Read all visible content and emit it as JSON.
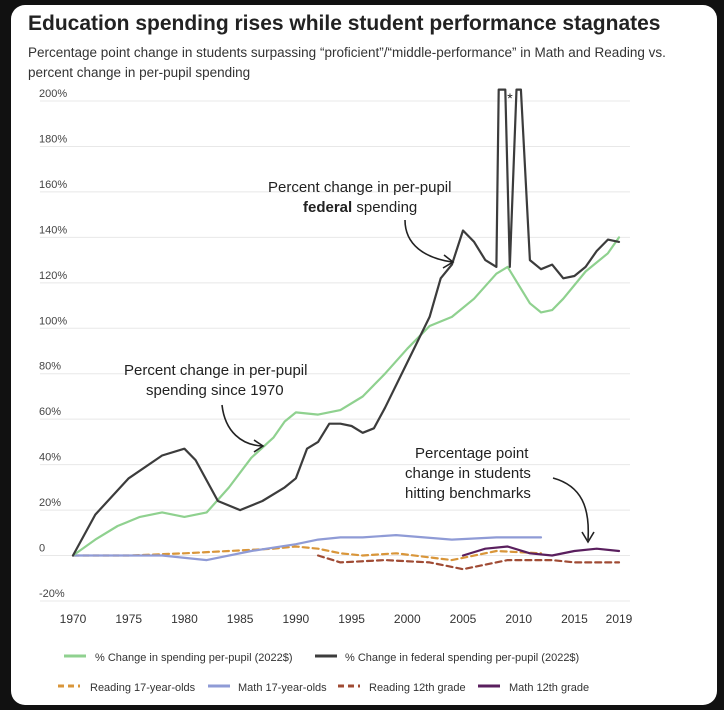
{
  "title": "Education spending rises while student performance stagnates",
  "subtitle": "Percentage point change in students surpassing “proficient”/“middle-performance” in Math and Reading vs. percent change in per-pupil spending",
  "chart_data": {
    "type": "line",
    "title": "Education spending rises while student performance stagnates",
    "xlabel": "",
    "ylabel": "",
    "xlim": [
      1970,
      2019
    ],
    "ylim": [
      -20,
      200
    ],
    "x_ticks": [
      "1970",
      "1975",
      "1980",
      "1985",
      "1990",
      "1995",
      "2000",
      "2005",
      "2010",
      "2015",
      "2019"
    ],
    "x_tick_values": [
      1970,
      1975,
      1980,
      1985,
      1990,
      1995,
      2000,
      2005,
      2010,
      2015,
      2019
    ],
    "y_ticks": [
      "200%",
      "180%",
      "160%",
      "140%",
      "120%",
      "100%",
      "80%",
      "60%",
      "40%",
      "20%",
      "0",
      "-20%"
    ],
    "y_tick_values": [
      200,
      180,
      160,
      140,
      120,
      100,
      80,
      60,
      40,
      20,
      0,
      -20
    ],
    "spike_marker": "*",
    "series": [
      {
        "name": "% Change in spending per-pupil (2022$)",
        "color": "#8fd18f",
        "dash": "solid",
        "x": [
          1970,
          1972,
          1974,
          1976,
          1978,
          1980,
          1982,
          1984,
          1986,
          1988,
          1989,
          1990,
          1992,
          1994,
          1996,
          1998,
          2000,
          2002,
          2004,
          2006,
          2008,
          2009,
          2010,
          2011,
          2012,
          2013,
          2014,
          2016,
          2018,
          2019
        ],
        "values": [
          0,
          7,
          13,
          17,
          19,
          17,
          19,
          30,
          43,
          52,
          59,
          63,
          62,
          64,
          70,
          80,
          91,
          101,
          105,
          113,
          124,
          127,
          119,
          111,
          107,
          108,
          113,
          125,
          133,
          140
        ]
      },
      {
        "name": "% Change in federal spending per-pupil (2022$)",
        "color": "#3c3c3c",
        "dash": "solid",
        "x": [
          1970,
          1972,
          1975,
          1978,
          1980,
          1981,
          1983,
          1985,
          1987,
          1989,
          1990,
          1991,
          1992,
          1993,
          1994,
          1995,
          1996,
          1997,
          1998,
          2000,
          2002,
          2003,
          2004,
          2005,
          2006,
          2007,
          2008,
          2008.2,
          2008.8,
          2009.2,
          2009.8,
          2010.2,
          2011,
          2012,
          2013,
          2014,
          2015,
          2016,
          2017,
          2018,
          2019
        ],
        "values": [
          0,
          18,
          34,
          44,
          47,
          42,
          24,
          20,
          24,
          30,
          34,
          47,
          50,
          58,
          58,
          57,
          54,
          56,
          65,
          85,
          105,
          122,
          128,
          143,
          138,
          130,
          127,
          205,
          205,
          127,
          205,
          205,
          130,
          126,
          128,
          122,
          123,
          127,
          134,
          139,
          138
        ]
      },
      {
        "name": "Reading 17-year-olds",
        "color": "#d9963a",
        "dash": "dashed",
        "x": [
          1970,
          1975,
          1980,
          1984,
          1988,
          1990,
          1992,
          1994,
          1996,
          1999,
          2004,
          2008,
          2012
        ],
        "values": [
          0,
          0,
          1,
          2,
          3,
          4,
          3,
          1,
          0,
          1,
          -2,
          2,
          1
        ]
      },
      {
        "name": "Math 17-year-olds",
        "color": "#8f9bd6",
        "dash": "solid",
        "x": [
          1970,
          1973,
          1978,
          1982,
          1986,
          1990,
          1992,
          1994,
          1996,
          1999,
          2004,
          2008,
          2012
        ],
        "values": [
          0,
          0,
          0,
          -2,
          2,
          5,
          7,
          8,
          8,
          9,
          7,
          8,
          8
        ]
      },
      {
        "name": "Reading 12th grade",
        "color": "#a04b34",
        "dash": "dashed",
        "x": [
          1992,
          1994,
          1998,
          2002,
          2005,
          2009,
          2013,
          2015,
          2019
        ],
        "values": [
          0,
          -3,
          -2,
          -3,
          -6,
          -2,
          -2,
          -3,
          -3
        ]
      },
      {
        "name": "Math 12th grade",
        "color": "#5a1f5e",
        "dash": "solid",
        "x": [
          2005,
          2007,
          2009,
          2011,
          2013,
          2015,
          2017,
          2019
        ],
        "values": [
          0,
          3,
          4,
          1,
          0,
          2,
          3,
          2
        ]
      }
    ],
    "annotations": {
      "federal_line1": "Percent change in per-pupil",
      "federal_bold": "federal",
      "federal_line2_rest": " spending",
      "spending_line1": "Percent change in per-pupil",
      "spending_line2": "spending since 1970",
      "bench_line1": "Percentage point",
      "bench_line2": "change in students",
      "bench_line3": "hitting benchmarks"
    },
    "legend": {
      "placement": "bottom",
      "row1": [
        "% Change in spending per-pupil (2022$)",
        "% Change in federal spending per-pupil (2022$)"
      ],
      "row2": [
        "Reading 17-year-olds",
        "Math 17-year-olds",
        "Reading 12th grade",
        "Math 12th grade"
      ]
    }
  }
}
